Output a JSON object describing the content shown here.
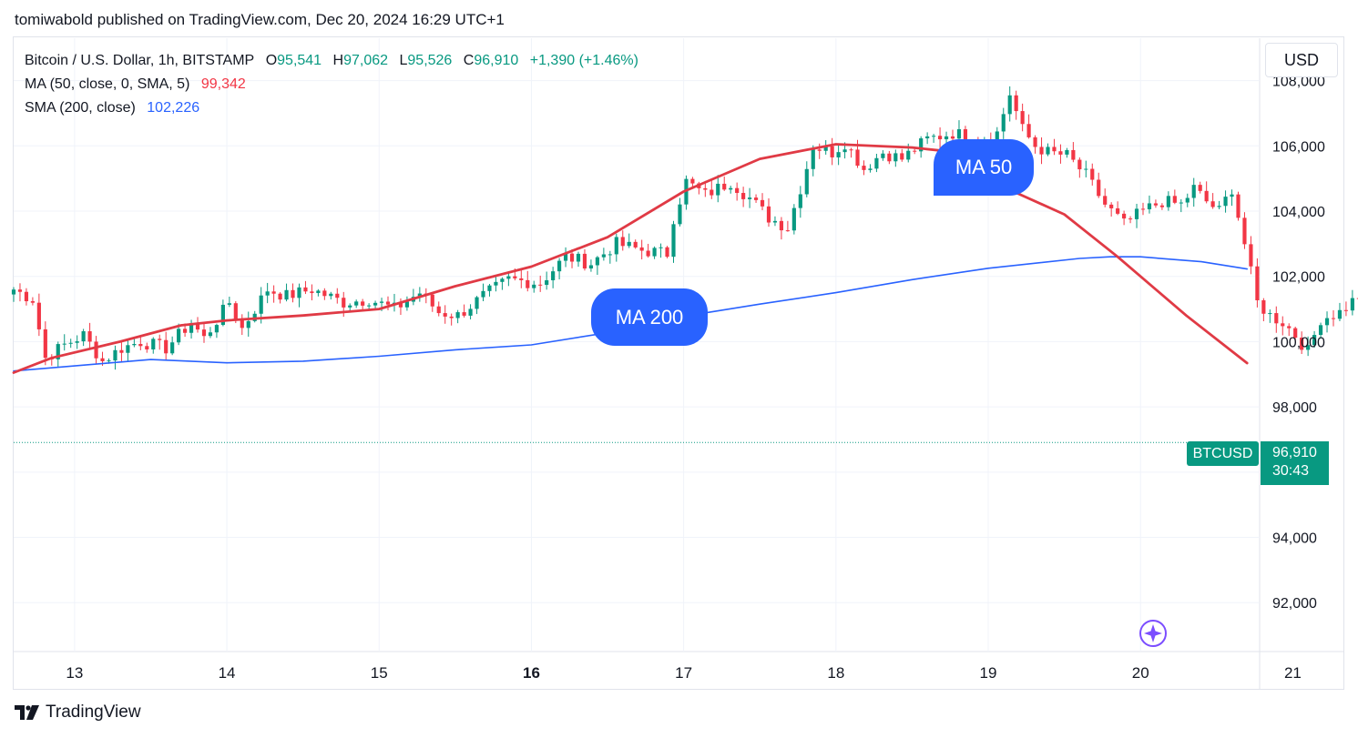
{
  "header": {
    "published_by": "tomiwabold published on TradingView.com, Dec 20, 2024 16:29 UTC+1"
  },
  "legend": {
    "symbol": "Bitcoin / U.S. Dollar, 1h, BITSTAMP",
    "open_label": "O",
    "open": "95,541",
    "high_label": "H",
    "high": "97,062",
    "low_label": "L",
    "low": "95,526",
    "close_label": "C",
    "close": "96,910",
    "change": "+1,390 (+1.46%)",
    "ma_label": "MA (50, close, 0, SMA, 5)",
    "ma_value": "99,342",
    "sma_label": "SMA (200, close)",
    "sma_value": "102,226"
  },
  "currency": "USD",
  "annotations": {
    "ma50": "MA 50",
    "ma200": "MA 200"
  },
  "last_price": {
    "symbol": "BTCUSD",
    "price": "96,910",
    "countdown": "30:43"
  },
  "brand": {
    "name": "TradingView"
  },
  "colors": {
    "up": "#089981",
    "down": "#f23645",
    "ma50": "#e03a45",
    "sma200": "#2962ff",
    "grid": "#f0f3fa"
  },
  "chart_data": {
    "type": "candlestick",
    "interval": "1h",
    "x_ticks": [
      "13",
      "14",
      "15",
      "16",
      "17",
      "18",
      "19",
      "20",
      "21"
    ],
    "x_tick_bold": [
      false,
      false,
      false,
      true,
      false,
      false,
      false,
      false,
      false
    ],
    "y_ticks": [
      92000,
      94000,
      96000,
      98000,
      100000,
      102000,
      104000,
      106000,
      108000
    ],
    "y_tick_labels": [
      "92,000",
      "94,000",
      "",
      "98,000",
      "100,000",
      "102,000",
      "104,000",
      "106,000",
      "108,000"
    ],
    "ylim": [
      90500,
      109300
    ],
    "xlim_days": [
      12.6,
      21.5
    ],
    "grid": true,
    "series": [
      {
        "name": "Bitcoin / U.S. Dollar",
        "kind": "ohlc",
        "x_start_day": 12.6,
        "step_hours": 1,
        "close_path": [
          [
            0,
            101600
          ],
          [
            3,
            101300
          ],
          [
            5,
            99500
          ],
          [
            8,
            99900
          ],
          [
            11,
            100200
          ],
          [
            14,
            99400
          ],
          [
            17,
            99800
          ],
          [
            20,
            100000
          ],
          [
            24,
            99800
          ],
          [
            28,
            100600
          ],
          [
            30,
            100100
          ],
          [
            34,
            101200
          ],
          [
            36,
            100400
          ],
          [
            40,
            101600
          ],
          [
            43,
            101400
          ],
          [
            47,
            101600
          ],
          [
            52,
            101200
          ],
          [
            56,
            101300
          ],
          [
            60,
            101000
          ],
          [
            64,
            101500
          ],
          [
            67,
            100900
          ],
          [
            70,
            100800
          ],
          [
            74,
            101400
          ],
          [
            78,
            101900
          ],
          [
            83,
            101800
          ],
          [
            87,
            102600
          ],
          [
            91,
            102400
          ],
          [
            95,
            103000
          ],
          [
            99,
            102800
          ],
          [
            103,
            102700
          ],
          [
            104,
            103800
          ],
          [
            106,
            104900
          ],
          [
            109,
            104500
          ],
          [
            113,
            104900
          ],
          [
            116,
            104400
          ],
          [
            119,
            103800
          ],
          [
            122,
            103500
          ],
          [
            124,
            104700
          ],
          [
            126,
            106000
          ],
          [
            129,
            105800
          ],
          [
            131,
            106100
          ],
          [
            134,
            105300
          ],
          [
            137,
            105800
          ],
          [
            140,
            105600
          ],
          [
            144,
            106200
          ],
          [
            148,
            106400
          ],
          [
            152,
            106200
          ],
          [
            155,
            106400
          ],
          [
            157,
            107600
          ],
          [
            159,
            106500
          ],
          [
            161,
            106000
          ],
          [
            163,
            105800
          ],
          [
            166,
            105700
          ],
          [
            169,
            105100
          ],
          [
            172,
            104200
          ],
          [
            175,
            103600
          ],
          [
            178,
            104000
          ],
          [
            181,
            104300
          ],
          [
            184,
            104200
          ],
          [
            186,
            104700
          ],
          [
            188,
            104300
          ],
          [
            190,
            104000
          ],
          [
            192,
            104700
          ],
          [
            194,
            103000
          ],
          [
            196,
            101200
          ],
          [
            198,
            100800
          ],
          [
            200,
            100600
          ],
          [
            202,
            100200
          ],
          [
            204,
            99700
          ],
          [
            206,
            100700
          ],
          [
            209,
            100900
          ],
          [
            212,
            101400
          ],
          [
            215,
            101800
          ],
          [
            218,
            102100
          ],
          [
            221,
            102000
          ],
          [
            223,
            101600
          ],
          [
            225,
            100900
          ],
          [
            227,
            100000
          ],
          [
            229,
            97800
          ],
          [
            231,
            97200
          ],
          [
            233,
            96100
          ],
          [
            235,
            97000
          ],
          [
            237,
            97900
          ],
          [
            239,
            97200
          ],
          [
            241,
            96600
          ],
          [
            243,
            96900
          ],
          [
            245,
            96800
          ],
          [
            247,
            97200
          ],
          [
            249,
            96700
          ],
          [
            250,
            95200
          ],
          [
            252,
            94800
          ],
          [
            254,
            92600
          ],
          [
            256,
            93900
          ],
          [
            258,
            95500
          ],
          [
            260,
            96910
          ]
        ]
      },
      {
        "name": "MA (50, close, 0, SMA, 5)",
        "kind": "line",
        "points": [
          [
            12.6,
            99050
          ],
          [
            12.85,
            99500
          ],
          [
            13.3,
            100000
          ],
          [
            13.7,
            100500
          ],
          [
            14.0,
            100650
          ],
          [
            14.5,
            100800
          ],
          [
            15.0,
            101000
          ],
          [
            15.5,
            101700
          ],
          [
            16.0,
            102300
          ],
          [
            16.5,
            103200
          ],
          [
            17.0,
            104600
          ],
          [
            17.5,
            105600
          ],
          [
            18.0,
            106050
          ],
          [
            18.5,
            105950
          ],
          [
            18.7,
            105850
          ],
          [
            19.0,
            104950
          ],
          [
            19.5,
            103900
          ],
          [
            19.85,
            102600
          ],
          [
            20.3,
            100800
          ],
          [
            20.7,
            99342
          ]
        ]
      },
      {
        "name": "SMA (200, close)",
        "kind": "line",
        "points": [
          [
            12.6,
            99100
          ],
          [
            13.5,
            99450
          ],
          [
            14.0,
            99350
          ],
          [
            14.5,
            99400
          ],
          [
            15.0,
            99550
          ],
          [
            15.5,
            99750
          ],
          [
            16.0,
            99900
          ],
          [
            16.6,
            100350
          ],
          [
            17.1,
            100850
          ],
          [
            17.5,
            101150
          ],
          [
            18.0,
            101500
          ],
          [
            18.5,
            101900
          ],
          [
            19.0,
            102250
          ],
          [
            19.6,
            102550
          ],
          [
            19.8,
            102600
          ],
          [
            20.0,
            102600
          ],
          [
            20.4,
            102450
          ],
          [
            20.7,
            102226
          ]
        ]
      }
    ]
  }
}
